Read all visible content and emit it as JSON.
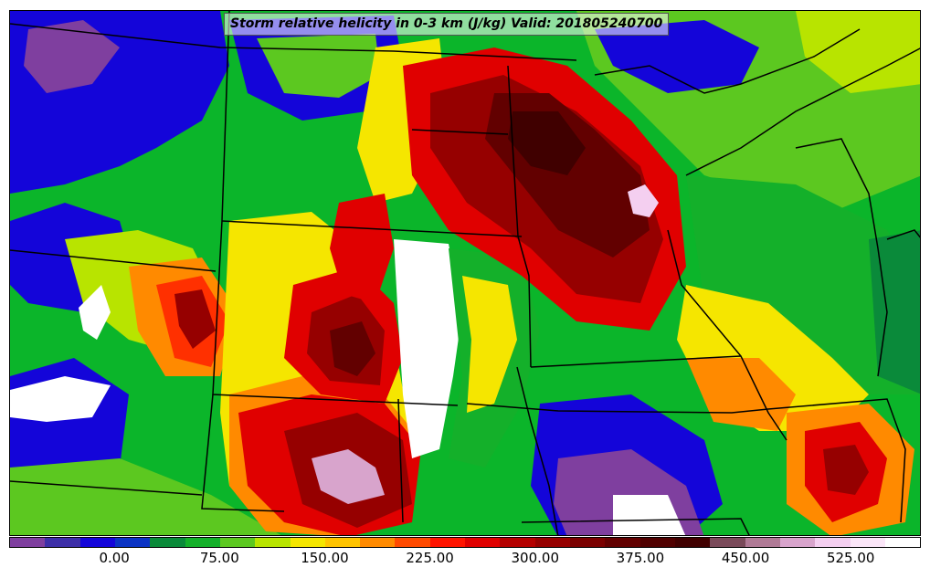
{
  "title": "Storm relative helicity in 0-3 km (J/kg) Valid: 201805240700",
  "colorbar": {
    "colors": [
      "#7f3f9f",
      "#3d2fa8",
      "#1405d9",
      "#0b33c4",
      "#0a8a3a",
      "#14b02a",
      "#5cc820",
      "#b8e400",
      "#f5e600",
      "#ffc400",
      "#ff8a00",
      "#ff4a00",
      "#ff1400",
      "#e00000",
      "#b40000",
      "#960000",
      "#7a0000",
      "#620000",
      "#500000",
      "#400000",
      "#7a4a5a",
      "#b07a96",
      "#d8a4cc",
      "#f4cff0",
      "#fbe6f8",
      "#ffffff"
    ],
    "tick_labels": [
      {
        "label": "0.00",
        "value": 0
      },
      {
        "label": "75.00",
        "value": 75
      },
      {
        "label": "150.00",
        "value": 150
      },
      {
        "label": "225.00",
        "value": 225
      },
      {
        "label": "300.00",
        "value": 300
      },
      {
        "label": "375.00",
        "value": 375
      },
      {
        "label": "450.00",
        "value": 450
      },
      {
        "label": "525.00",
        "value": 525
      }
    ],
    "min": -75,
    "max": 575
  },
  "map_colors": {
    "white": "#ffffff",
    "pink": "#f4cff0",
    "lavender": "#d8a4cc",
    "maroon_dark": "#400000",
    "maroon": "#620000",
    "dark_red": "#960000",
    "red": "#e00000",
    "red_orange": "#ff3000",
    "orange": "#ff8a00",
    "yellow": "#f5e600",
    "yellow_green": "#b8e400",
    "green_light": "#5cc820",
    "green": "#14b02a",
    "green_dark": "#0a8a3a",
    "blue": "#1405d9",
    "purple": "#7f3f9f",
    "border": "#000000"
  }
}
